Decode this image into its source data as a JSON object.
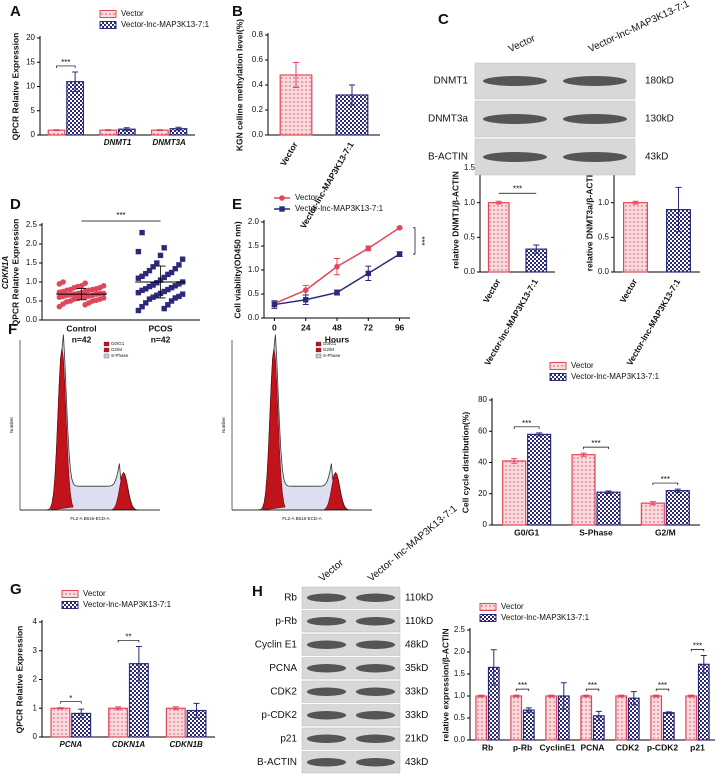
{
  "chart_data": [
    {
      "type": "bar",
      "panel": "A",
      "ylabel": "QPCR Relative Expression",
      "categories": [
        null,
        "DNMT1",
        "DNMT3A"
      ],
      "ylim": [
        0,
        20
      ],
      "yticks": [
        0,
        5,
        10,
        15,
        20
      ],
      "series": [
        {
          "name": "Vector",
          "color": "#e0475a",
          "hatch": "dots",
          "values": [
            1,
            1,
            1
          ],
          "errors": [
            0.1,
            0.1,
            0.1
          ]
        },
        {
          "name": "Vector-lnc-MAP3K13-7:1",
          "color": "#2b2a7a",
          "hatch": "checks",
          "values": [
            11,
            1.2,
            1.3
          ],
          "errors": [
            2,
            0.3,
            0.3
          ]
        }
      ],
      "annotations": [
        "***",
        null,
        null
      ]
    },
    {
      "type": "bar",
      "panel": "B",
      "ylabel": "KGN celline methylation level(%)",
      "categories": [
        "Vector",
        "Vector-lnc-MAP3K13-7:1"
      ],
      "values": [
        0.48,
        0.32
      ],
      "errors": [
        0.1,
        0.08
      ],
      "colors": [
        "#e0475a",
        "#2b2a7a"
      ],
      "hatches": [
        "dots",
        "checks"
      ],
      "ylim": [
        0,
        0.8
      ],
      "yticks": [
        {
          "value": 0,
          "label": "0.0"
        },
        {
          "value": 0.2,
          "label": "0.2"
        },
        {
          "value": 0.4,
          "label": "0.4"
        },
        {
          "value": 0.6,
          "label": "0.6"
        },
        {
          "value": 0.8,
          "label": "0.8"
        }
      ]
    },
    {
      "type": "bar",
      "ylabel": "relative DNMT1/β-ACTIN",
      "categories": [
        "Vector",
        "Vector-lnc-MAP3K13-7:1"
      ],
      "values": [
        1,
        0.33
      ],
      "errors": [
        0.02,
        0.06
      ],
      "colors": [
        "#e0475a",
        "#2b2a7a"
      ],
      "hatches": [
        "dots",
        "checks"
      ],
      "ylim": [
        0,
        1.5
      ],
      "yticks": [
        {
          "value": 0,
          "label": "0.0"
        },
        {
          "value": 0.5,
          "label": "0.5"
        },
        {
          "value": 1,
          "label": "1.0"
        },
        {
          "value": 1.5,
          "label": "1.5"
        }
      ],
      "annotation": "***"
    },
    {
      "type": "bar",
      "ylabel": "relative DNMT3a/β-ACTIN",
      "categories": [
        "Vector",
        "Vector-lnc-MAP3K13-7:1"
      ],
      "values": [
        1,
        0.9
      ],
      "errors": [
        0.02,
        0.32
      ],
      "colors": [
        "#e0475a",
        "#2b2a7a"
      ],
      "hatches": [
        "dots",
        "checks"
      ],
      "ylim": [
        0,
        1.5
      ],
      "yticks": [
        {
          "value": 0,
          "label": "0.0"
        },
        {
          "value": 0.5,
          "label": "0.5"
        },
        {
          "value": 1,
          "label": "1.0"
        },
        {
          "value": 1.5,
          "label": "1.5"
        }
      ]
    },
    {
      "type": "strip",
      "panel": "D",
      "gene": "CDKN1A",
      "ylabel": "QPCR Relative Expression",
      "categories": [
        "Control",
        "PCOS"
      ],
      "counts": [
        "n=42",
        "n=42"
      ],
      "ylim": [
        0,
        2.5
      ],
      "yticks": [
        {
          "value": 0,
          "label": "0.0"
        },
        {
          "value": 0.5,
          "label": "0.5"
        },
        {
          "value": 1,
          "label": "1.0"
        },
        {
          "value": 1.5,
          "label": "1.5"
        },
        {
          "value": 2,
          "label": "2.0"
        },
        {
          "value": 2.5,
          "label": "2.5"
        }
      ],
      "series": [
        {
          "color": "#e0475a",
          "marker": "circle",
          "mean": 0.68,
          "sd": 0.15,
          "values": [
            0.35,
            0.4,
            0.42,
            0.45,
            0.48,
            0.5,
            0.5,
            0.52,
            0.55,
            0.55,
            0.57,
            0.58,
            0.6,
            0.6,
            0.6,
            0.62,
            0.63,
            0.65,
            0.65,
            0.66,
            0.68,
            0.68,
            0.7,
            0.7,
            0.7,
            0.72,
            0.73,
            0.75,
            0.75,
            0.78,
            0.78,
            0.8,
            0.8,
            0.82,
            0.85,
            0.85,
            0.88,
            0.9,
            0.9,
            0.95,
            0.97,
            1.0
          ]
        },
        {
          "color": "#2b2a7a",
          "marker": "square",
          "mean": 1.0,
          "sd": 0.42,
          "values": [
            0.25,
            0.3,
            0.35,
            0.4,
            0.45,
            0.5,
            0.55,
            0.58,
            0.6,
            0.62,
            0.65,
            0.68,
            0.7,
            0.72,
            0.75,
            0.78,
            0.8,
            0.82,
            0.85,
            0.88,
            0.9,
            0.92,
            0.95,
            0.98,
            1.0,
            1.05,
            1.1,
            1.12,
            1.15,
            1.2,
            1.22,
            1.25,
            1.3,
            1.35,
            1.4,
            1.45,
            1.5,
            1.6,
            1.7,
            1.8,
            1.9,
            2.3
          ]
        }
      ],
      "annotation": "***"
    },
    {
      "type": "line",
      "panel": "E",
      "xlabel": "Hours",
      "ylabel": "Cell viability(OD450 nm)",
      "x": [
        0,
        24,
        48,
        72,
        96
      ],
      "xlim": [
        -8,
        104
      ],
      "xticks": [
        0,
        24,
        48,
        72,
        96
      ],
      "ylim": [
        0,
        2
      ],
      "yticks": [
        {
          "value": 0,
          "label": "0.0"
        },
        {
          "value": 0.5,
          "label": "0.5"
        },
        {
          "value": 1,
          "label": "1.0"
        },
        {
          "value": 1.5,
          "label": "1.5"
        },
        {
          "value": 2,
          "label": "2.0"
        }
      ],
      "series": [
        {
          "name": "Vector",
          "color": "#e0475a",
          "marker": "circle",
          "values": [
            0.3,
            0.58,
            1.07,
            1.45,
            1.88
          ],
          "errors": [
            0.05,
            0.1,
            0.17,
            0.05,
            0.02
          ]
        },
        {
          "name": "Vector-lnc-MAP3K13-7:1",
          "color": "#2b2a7a",
          "marker": "square",
          "values": [
            0.28,
            0.38,
            0.53,
            0.93,
            1.33
          ],
          "errors": [
            0.08,
            0.1,
            0.05,
            0.15,
            0.05
          ]
        }
      ],
      "annotation": "***"
    },
    {
      "type": "bar",
      "ylabel": "Cell cycle distribution(%)",
      "categories": [
        "G0/G1",
        "S-Phase",
        "G2/M"
      ],
      "ylim": [
        0,
        80
      ],
      "yticks": [
        0,
        20,
        40,
        60,
        80
      ],
      "series": [
        {
          "name": "Vector",
          "color": "#e0475a",
          "hatch": "dots",
          "values": [
            41,
            45,
            14
          ],
          "errors": [
            1.5,
            1,
            1
          ]
        },
        {
          "name": "Vector-lnc-MAP3K13-7:1",
          "color": "#2b2a7a",
          "hatch": "checks",
          "values": [
            58,
            21,
            22
          ],
          "errors": [
            1,
            0.8,
            1
          ]
        }
      ],
      "annotations": [
        "***",
        "***",
        "***"
      ]
    },
    {
      "type": "bar",
      "panel": "G",
      "ylabel": "QPCR Relative Expression",
      "categories": [
        "PCNA",
        "CDKN1A",
        "CDKN1B"
      ],
      "ylim": [
        0,
        4
      ],
      "yticks": [
        0,
        1,
        2,
        3,
        4
      ],
      "series": [
        {
          "name": "Vector",
          "color": "#e0475a",
          "hatch": "dots",
          "values": [
            1,
            1,
            1
          ],
          "errors": [
            0.02,
            0.05,
            0.05
          ]
        },
        {
          "name": "Vector-lnc-MAP3K13-7:1",
          "color": "#2b2a7a",
          "hatch": "checks",
          "values": [
            0.82,
            2.55,
            0.92
          ],
          "errors": [
            0.15,
            0.6,
            0.25
          ]
        }
      ],
      "annotations": [
        "*",
        "**",
        null
      ]
    },
    {
      "type": "bar",
      "ylabel": "relative expression/β-ACTIN",
      "categories": [
        "Rb",
        "p-Rb",
        "CyclinE1",
        "PCNA",
        "CDK2",
        "p-CDK2",
        "p21"
      ],
      "ylim": [
        0,
        2.5
      ],
      "yticks": [
        {
          "value": 0,
          "label": "0.0"
        },
        {
          "value": 0.5,
          "label": "0.5"
        },
        {
          "value": 1,
          "label": "1.0"
        },
        {
          "value": 1.5,
          "label": "1.5"
        },
        {
          "value": 2,
          "label": "2.0"
        },
        {
          "value": 2.5,
          "label": "2.5"
        }
      ],
      "series": [
        {
          "name": "Vector",
          "color": "#e0475a",
          "hatch": "dots",
          "values": [
            1,
            1,
            1,
            1,
            1,
            1,
            1
          ],
          "errors": [
            0.02,
            0.02,
            0.02,
            0.02,
            0.02,
            0.02,
            0.02
          ]
        },
        {
          "name": "Vector-lnc-MAP3K13-7:1",
          "color": "#2b2a7a",
          "hatch": "checks",
          "values": [
            1.65,
            0.68,
            1.0,
            0.55,
            0.95,
            0.62,
            1.72
          ],
          "errors": [
            0.4,
            0.05,
            0.3,
            0.1,
            0.15,
            0.02,
            0.2
          ]
        }
      ],
      "annotations": [
        null,
        "***",
        null,
        "***",
        null,
        "***",
        "***"
      ]
    }
  ],
  "blots": [
    {
      "panel": "C",
      "lanes": [
        "Vector",
        "Vector-lnc-MAP3K13-7:1"
      ],
      "rows": [
        {
          "label": "DNMT1",
          "size": "180kD"
        },
        {
          "label": "DNMT3a",
          "size": "130kD"
        },
        {
          "label": "B-ACTIN",
          "size": "43kD"
        }
      ]
    },
    {
      "panel": "H",
      "lanes": [
        "Vector",
        "Vector- lnc-MAP3K13-7:1"
      ],
      "rows": [
        {
          "label": "Rb",
          "size": "110kD"
        },
        {
          "label": "p-Rb",
          "size": "110kD"
        },
        {
          "label": "Cyclin E1",
          "size": "48kD"
        },
        {
          "label": "PCNA",
          "size": "35kD"
        },
        {
          "label": "CDK2",
          "size": "33kD"
        },
        {
          "label": "p-CDK2",
          "size": "33kD"
        },
        {
          "label": "p21",
          "size": "21kD"
        },
        {
          "label": "B-ACTIN",
          "size": "43kD"
        }
      ]
    }
  ],
  "flow": {
    "panel": "F",
    "legend": [
      "G0/G1",
      "G2/M",
      "S-Phase"
    ],
    "xlabel": "FL2-A B616-ECD-A",
    "ylabel": "Number"
  }
}
